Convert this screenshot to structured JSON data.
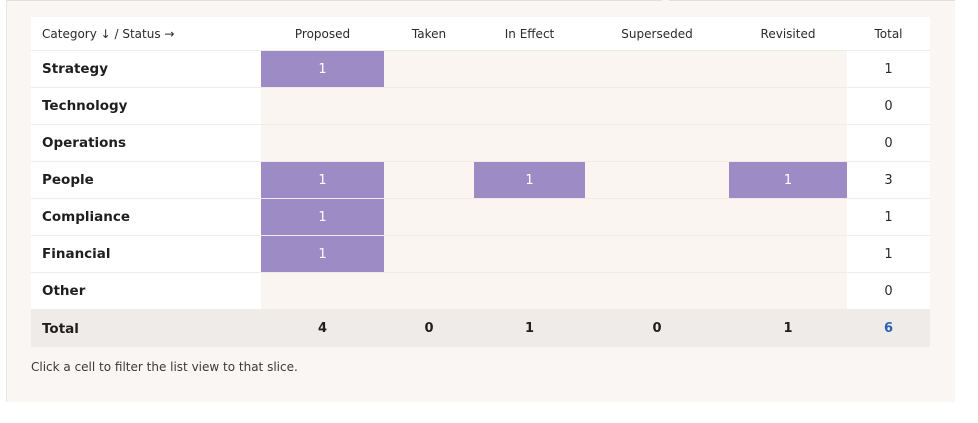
{
  "table": {
    "header": {
      "category": "Category ↓ / Status →",
      "columns": [
        "Proposed",
        "Taken",
        "In Effect",
        "Superseded",
        "Revisited"
      ],
      "total": "Total"
    },
    "rows": [
      {
        "label": "Strategy",
        "cells": [
          "1",
          "",
          "",
          "",
          ""
        ],
        "total": "1"
      },
      {
        "label": "Technology",
        "cells": [
          "",
          "",
          "",
          "",
          ""
        ],
        "total": "0"
      },
      {
        "label": "Operations",
        "cells": [
          "",
          "",
          "",
          "",
          ""
        ],
        "total": "0"
      },
      {
        "label": "People",
        "cells": [
          "1",
          "",
          "1",
          "",
          "1"
        ],
        "total": "3"
      },
      {
        "label": "Compliance",
        "cells": [
          "1",
          "",
          "",
          "",
          ""
        ],
        "total": "1"
      },
      {
        "label": "Financial",
        "cells": [
          "1",
          "",
          "",
          "",
          ""
        ],
        "total": "1"
      },
      {
        "label": "Other",
        "cells": [
          "",
          "",
          "",
          "",
          ""
        ],
        "total": "0"
      }
    ],
    "totals": {
      "label": "Total",
      "values": [
        "4",
        "0",
        "1",
        "0",
        "1"
      ],
      "grand": "6"
    }
  },
  "hint": "Click a cell to filter the list view to that slice.",
  "colors": {
    "filled_cell": "#9d8bc5",
    "empty_cell": "#faf5f1",
    "grand_total": "#2f5fb3",
    "panel": "#f9f6f3"
  }
}
